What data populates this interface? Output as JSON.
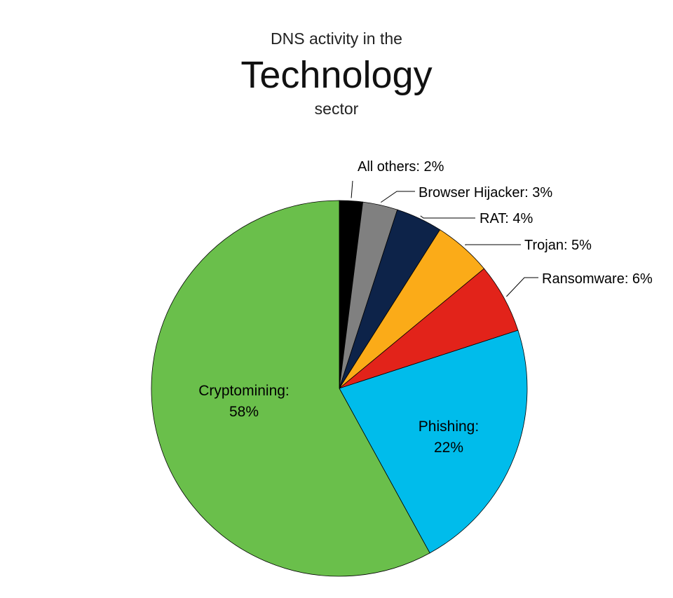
{
  "title": {
    "pre": "DNS activity in the",
    "main": "Technology",
    "post": "sector"
  },
  "chart_data": {
    "type": "pie",
    "slices": [
      {
        "name": "All others",
        "value": 2,
        "color": "#000000",
        "label": "All others: 2%"
      },
      {
        "name": "Browser Hijacker",
        "value": 3,
        "color": "#808080",
        "label": "Browser Hijacker: 3%"
      },
      {
        "name": "RAT",
        "value": 4,
        "color": "#0d2349",
        "label": "RAT: 4%"
      },
      {
        "name": "Trojan",
        "value": 5,
        "color": "#fbab18",
        "label": "Trojan: 5%"
      },
      {
        "name": "Ransomware",
        "value": 6,
        "color": "#e2231a",
        "label": "Ransomware: 6%"
      },
      {
        "name": "Phishing",
        "value": 22,
        "color": "#00bceb",
        "label_line1": "Phishing:",
        "label_line2": "22%"
      },
      {
        "name": "Cryptomining",
        "value": 58,
        "color": "#6abf4b",
        "label_line1": "Cryptomining:",
        "label_line2": "58%"
      }
    ]
  }
}
